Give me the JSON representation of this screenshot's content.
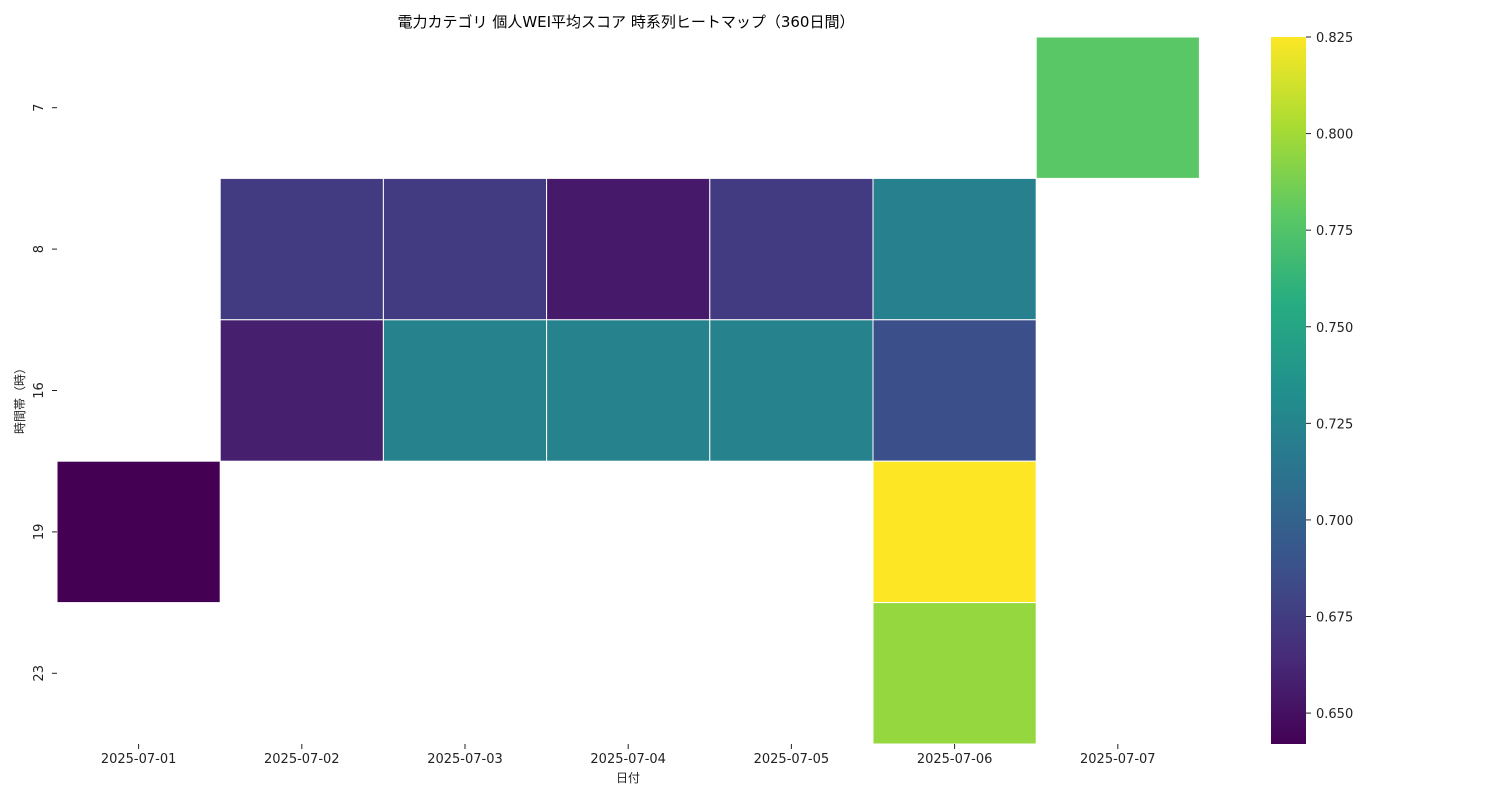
{
  "chart_data": {
    "type": "heatmap",
    "title": "電力カテゴリ 個人WEI平均スコア 時系列ヒートマップ（360日間）",
    "xlabel": "日付",
    "ylabel": "時間帯（時）",
    "x_categories": [
      "2025-07-01",
      "2025-07-02",
      "2025-07-03",
      "2025-07-04",
      "2025-07-05",
      "2025-07-06",
      "2025-07-07"
    ],
    "y_categories": [
      "7",
      "8",
      "16",
      "19",
      "23"
    ],
    "values": [
      [
        null,
        null,
        null,
        null,
        null,
        null,
        0.778
      ],
      [
        null,
        0.674,
        0.674,
        0.655,
        0.674,
        0.722,
        null
      ],
      [
        null,
        0.658,
        0.723,
        0.723,
        0.723,
        0.687,
        null
      ],
      [
        0.642,
        null,
        null,
        null,
        null,
        0.825,
        null
      ],
      [
        null,
        null,
        null,
        null,
        null,
        0.796,
        null
      ]
    ],
    "colormap": "viridis",
    "vmin": 0.642,
    "vmax": 0.825,
    "colorbar_ticks": [
      "0.650",
      "0.675",
      "0.700",
      "0.725",
      "0.750",
      "0.775",
      "0.800",
      "0.825"
    ],
    "grid": false
  }
}
